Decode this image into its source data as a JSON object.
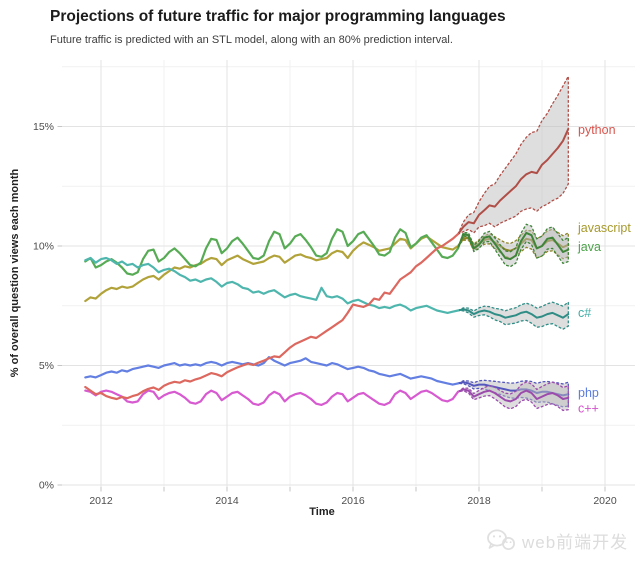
{
  "title": "Projections of future traffic for major programming languages",
  "subtitle": "Future traffic is predicted with an STL model, along with an 80% prediction interval.",
  "watermark": {
    "icon": "wechat-smiley-icon",
    "text": "web前端开发",
    "color": "#dcdcdc"
  },
  "chart_data": {
    "type": "line",
    "title": "Projections of future traffic for major programming languages",
    "subtitle": "Future traffic is predicted with an STL model, along with an 80% prediction interval.",
    "xlabel": "Time",
    "ylabel": "% of overall question views each month",
    "grid": true,
    "legend_position": "right-edge-direct-labels",
    "xlim": [
      2011.4,
      2020.5
    ],
    "ylim": [
      0,
      17.8
    ],
    "x_ticks_major": [
      2012,
      2014,
      2016,
      2018,
      2020
    ],
    "x_tick_labels": [
      "2012",
      "2014",
      "2016",
      "2018",
      "2020"
    ],
    "x_ticks_minor": [
      2013,
      2015,
      2017,
      2019
    ],
    "y_ticks_major": [
      0,
      5,
      10,
      15
    ],
    "y_tick_labels": [
      "0%",
      "5%",
      "10%",
      "15%"
    ],
    "y_ticks_minor": [
      2.5,
      7.5,
      12.5,
      17.5
    ],
    "history_start": 2011.75,
    "forecast_start": 2017.6667,
    "step_years": 0.0833333,
    "band_widths": [
      0,
      0.06,
      0.1,
      0.13,
      0.16,
      0.18,
      0.21,
      0.24,
      0.26,
      0.29,
      0.31,
      0.32,
      0.34,
      0.36,
      0.38,
      0.4,
      0.42,
      0.43,
      0.45,
      0.47,
      0.48,
      0.5
    ],
    "series": [
      {
        "name": "javascript",
        "label_v": 10.75,
        "color": "#b1a23a",
        "fc_color": "#8e8325",
        "label_color": "#a79a2d",
        "history": [
          7.7,
          7.85,
          7.8,
          8.0,
          8.15,
          8.25,
          8.2,
          8.3,
          8.25,
          8.3,
          8.45,
          8.6,
          8.7,
          8.75,
          8.6,
          8.8,
          8.95,
          9.1,
          9.05,
          9.15,
          9.1,
          9.2,
          9.25,
          9.4,
          9.5,
          9.45,
          9.2,
          9.4,
          9.5,
          9.6,
          9.45,
          9.35,
          9.25,
          9.3,
          9.35,
          9.5,
          9.6,
          9.55,
          9.3,
          9.45,
          9.6,
          9.65,
          9.55,
          9.5,
          9.4,
          9.45,
          9.5,
          9.7,
          9.8,
          9.75,
          9.5,
          9.8,
          10.0,
          10.15,
          10.05,
          9.95,
          9.8,
          9.85,
          9.9,
          10.1,
          10.3,
          10.25,
          9.9,
          10.1,
          10.3,
          10.4,
          10.25,
          10.1,
          9.95,
          9.9,
          9.85,
          10.0
        ],
        "forecast": [
          10.0,
          10.3,
          10.35,
          9.95,
          10.1,
          10.25,
          10.3,
          10.15,
          10.0,
          9.85,
          9.8,
          9.9,
          10.1,
          10.3,
          10.25,
          9.9,
          10.0,
          10.2,
          10.25,
          10.1,
          9.95,
          10.05
        ]
      },
      {
        "name": "java",
        "label_v": 9.95,
        "color": "#57ab55",
        "fc_color": "#3f8539",
        "label_color": "#4ea24c",
        "history": [
          9.35,
          9.5,
          9.1,
          9.2,
          9.35,
          9.45,
          9.3,
          9.1,
          8.85,
          8.8,
          8.9,
          9.45,
          9.8,
          9.85,
          9.35,
          9.5,
          9.75,
          9.9,
          9.7,
          9.45,
          9.2,
          9.15,
          9.3,
          9.9,
          10.3,
          10.25,
          9.7,
          9.9,
          10.2,
          10.35,
          10.1,
          9.8,
          9.5,
          9.45,
          9.6,
          10.2,
          10.6,
          10.5,
          9.9,
          10.1,
          10.4,
          10.5,
          10.25,
          9.95,
          9.6,
          9.55,
          9.7,
          10.3,
          10.7,
          10.6,
          10.0,
          10.2,
          10.5,
          10.6,
          10.3,
          10.0,
          9.65,
          9.6,
          9.75,
          10.35,
          10.7,
          10.55,
          9.95,
          10.1,
          10.35,
          10.45,
          10.15,
          9.85,
          9.55,
          9.5,
          9.6,
          9.9
        ],
        "forecast": [
          9.9,
          10.5,
          10.45,
          9.9,
          10.05,
          10.35,
          10.4,
          10.1,
          9.8,
          9.5,
          9.45,
          9.6,
          10.2,
          10.55,
          10.45,
          9.9,
          10.0,
          10.3,
          10.35,
          10.05,
          9.75,
          9.85
        ]
      },
      {
        "name": "c#",
        "label_v": 7.2,
        "color": "#4fb6ae",
        "fc_color": "#2f8d86",
        "label_color": "#3fada5",
        "history": [
          9.4,
          9.5,
          9.3,
          9.45,
          9.5,
          9.4,
          9.25,
          9.35,
          9.2,
          9.25,
          9.1,
          9.2,
          9.25,
          9.1,
          8.9,
          9.0,
          9.05,
          8.95,
          8.8,
          8.7,
          8.55,
          8.6,
          8.5,
          8.6,
          8.65,
          8.5,
          8.3,
          8.45,
          8.5,
          8.4,
          8.25,
          8.2,
          8.05,
          8.1,
          8.0,
          8.1,
          8.15,
          8.0,
          7.85,
          7.95,
          8.0,
          7.9,
          7.85,
          7.8,
          7.75,
          8.25,
          7.9,
          7.85,
          7.9,
          7.8,
          7.6,
          7.7,
          7.75,
          7.65,
          7.55,
          7.5,
          7.4,
          7.45,
          7.4,
          7.5,
          7.55,
          7.45,
          7.3,
          7.4,
          7.45,
          7.5,
          7.4,
          7.3,
          7.25,
          7.2,
          7.25,
          7.3
        ],
        "forecast": [
          7.3,
          7.35,
          7.3,
          7.15,
          7.25,
          7.3,
          7.25,
          7.15,
          7.1,
          7.0,
          7.05,
          7.1,
          7.2,
          7.25,
          7.15,
          7.0,
          7.05,
          7.15,
          7.2,
          7.1,
          7.0,
          7.15
        ]
      },
      {
        "name": "php",
        "label_v": 3.85,
        "color": "#637fe2",
        "fc_color": "#5457bd",
        "label_color": "#5c7ce0",
        "history": [
          4.5,
          4.55,
          4.5,
          4.6,
          4.7,
          4.75,
          4.7,
          4.8,
          4.75,
          4.85,
          4.9,
          4.95,
          5.0,
          4.95,
          4.9,
          5.0,
          5.05,
          5.1,
          5.0,
          5.05,
          5.0,
          5.05,
          5.0,
          5.1,
          5.15,
          5.1,
          5.0,
          5.1,
          5.15,
          5.1,
          5.05,
          5.1,
          5.05,
          5.0,
          5.1,
          5.35,
          5.2,
          5.1,
          5.0,
          5.1,
          5.15,
          5.2,
          5.3,
          5.15,
          5.1,
          5.05,
          5.0,
          5.1,
          5.05,
          4.95,
          4.85,
          4.9,
          4.95,
          4.9,
          4.8,
          4.75,
          4.65,
          4.6,
          4.55,
          4.6,
          4.65,
          4.55,
          4.45,
          4.5,
          4.55,
          4.5,
          4.45,
          4.35,
          4.3,
          4.25,
          4.2,
          4.25
        ],
        "forecast": [
          4.25,
          4.3,
          4.25,
          4.15,
          4.2,
          4.2,
          4.15,
          4.1,
          4.05,
          4.0,
          3.95,
          3.95,
          4.0,
          4.0,
          3.95,
          3.85,
          3.9,
          3.9,
          3.85,
          3.8,
          3.75,
          3.8
        ]
      },
      {
        "name": "c++",
        "label_v": 3.2,
        "color": "#d75ad0",
        "fc_color": "#9c4bad",
        "label_color": "#d252cb",
        "history": [
          3.95,
          3.9,
          3.75,
          3.9,
          3.95,
          3.9,
          3.8,
          3.7,
          3.5,
          3.45,
          3.5,
          3.8,
          3.95,
          3.9,
          3.6,
          3.75,
          3.85,
          3.9,
          3.8,
          3.65,
          3.45,
          3.4,
          3.5,
          3.8,
          3.95,
          3.85,
          3.55,
          3.7,
          3.85,
          3.9,
          3.75,
          3.6,
          3.4,
          3.35,
          3.45,
          3.75,
          3.9,
          3.8,
          3.5,
          3.7,
          3.8,
          3.85,
          3.75,
          3.6,
          3.4,
          3.35,
          3.45,
          3.7,
          3.85,
          3.8,
          3.5,
          3.65,
          3.8,
          3.85,
          3.7,
          3.55,
          3.4,
          3.35,
          3.45,
          3.8,
          3.95,
          3.85,
          3.6,
          3.75,
          3.9,
          3.95,
          3.85,
          3.7,
          3.55,
          3.5,
          3.6,
          3.9
        ],
        "forecast": [
          3.9,
          4.0,
          3.95,
          3.7,
          3.8,
          3.9,
          3.95,
          3.85,
          3.7,
          3.55,
          3.5,
          3.6,
          3.85,
          3.95,
          3.85,
          3.6,
          3.7,
          3.8,
          3.85,
          3.75,
          3.6,
          3.65
        ]
      },
      {
        "name": "python",
        "label_v": 14.85,
        "color": "#dc685f",
        "fc_color": "#b04f48",
        "label_color": "#d9544d",
        "history": [
          4.1,
          3.95,
          3.8,
          3.85,
          3.72,
          3.65,
          3.6,
          3.68,
          3.63,
          3.72,
          3.78,
          3.92,
          4.02,
          4.08,
          3.98,
          4.15,
          4.25,
          4.32,
          4.28,
          4.38,
          4.33,
          4.42,
          4.48,
          4.58,
          4.68,
          4.63,
          4.55,
          4.72,
          4.82,
          4.92,
          5.0,
          5.08,
          5.02,
          5.12,
          5.2,
          5.3,
          5.38,
          5.35,
          5.55,
          5.75,
          5.9,
          6.0,
          6.1,
          6.2,
          6.15,
          6.3,
          6.45,
          6.6,
          6.75,
          6.9,
          7.2,
          7.55,
          7.5,
          7.45,
          7.55,
          7.8,
          7.75,
          8.05,
          8.0,
          8.3,
          8.6,
          8.75,
          8.9,
          9.15,
          9.3,
          9.5,
          9.7,
          9.9,
          10.0,
          10.15,
          10.3,
          10.5
        ],
        "forecast": [
          10.5,
          10.8,
          11.0,
          10.95,
          11.3,
          11.5,
          11.7,
          11.65,
          11.9,
          12.1,
          12.3,
          12.5,
          12.8,
          13.0,
          13.1,
          13.05,
          13.4,
          13.6,
          13.85,
          14.1,
          14.4,
          14.9
        ],
        "fc_hi": [
          10.5,
          11.0,
          11.3,
          11.4,
          11.85,
          12.2,
          12.5,
          12.6,
          12.95,
          13.25,
          13.55,
          13.85,
          14.25,
          14.55,
          14.75,
          14.8,
          15.25,
          15.55,
          15.95,
          16.3,
          16.7,
          17.1
        ],
        "fc_lo": [
          10.5,
          10.6,
          10.7,
          10.55,
          10.8,
          10.85,
          10.95,
          10.8,
          10.95,
          11.05,
          11.15,
          11.25,
          11.45,
          11.55,
          11.6,
          11.45,
          11.65,
          11.75,
          11.9,
          12.0,
          12.2,
          12.6
        ]
      }
    ]
  }
}
